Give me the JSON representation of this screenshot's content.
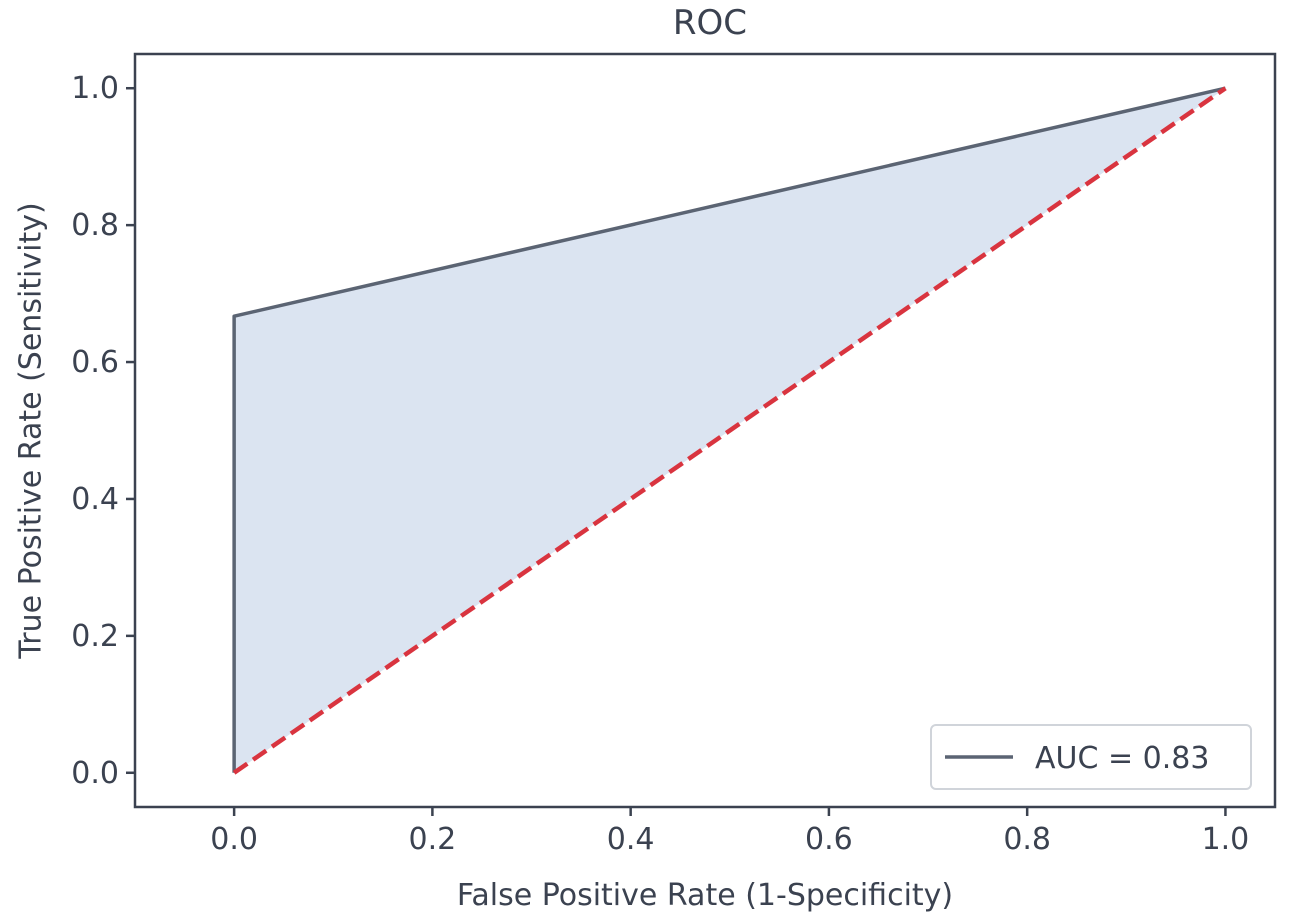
{
  "chart_data": {
    "type": "line",
    "title": "ROC",
    "xlabel": "False Positive Rate (1-Specificity)",
    "ylabel": "True Positive Rate (Sensitivity)",
    "xlim": [
      -0.1,
      1.05
    ],
    "ylim": [
      -0.05,
      1.05
    ],
    "xticks": [
      0.0,
      0.2,
      0.4,
      0.6,
      0.8,
      1.0
    ],
    "yticks": [
      0.0,
      0.2,
      0.4,
      0.6,
      0.8,
      1.0
    ],
    "xtick_labels": [
      "0.0",
      "0.2",
      "0.4",
      "0.6",
      "0.8",
      "1.0"
    ],
    "ytick_labels": [
      "0.0",
      "0.2",
      "0.4",
      "0.6",
      "0.8",
      "1.0"
    ],
    "grid": false,
    "legend_position": "lower-right",
    "series": [
      {
        "name": "AUC = 0.83",
        "x": [
          0.0,
          0.0,
          1.0
        ],
        "y": [
          0.0,
          0.667,
          1.0
        ],
        "color": "#5b6473",
        "fill": "#dbe4f1",
        "style": "solid"
      },
      {
        "x": [
          0.0,
          1.0
        ],
        "y": [
          0.0,
          1.0
        ],
        "color": "#d9343f",
        "style": "dashed"
      }
    ]
  }
}
